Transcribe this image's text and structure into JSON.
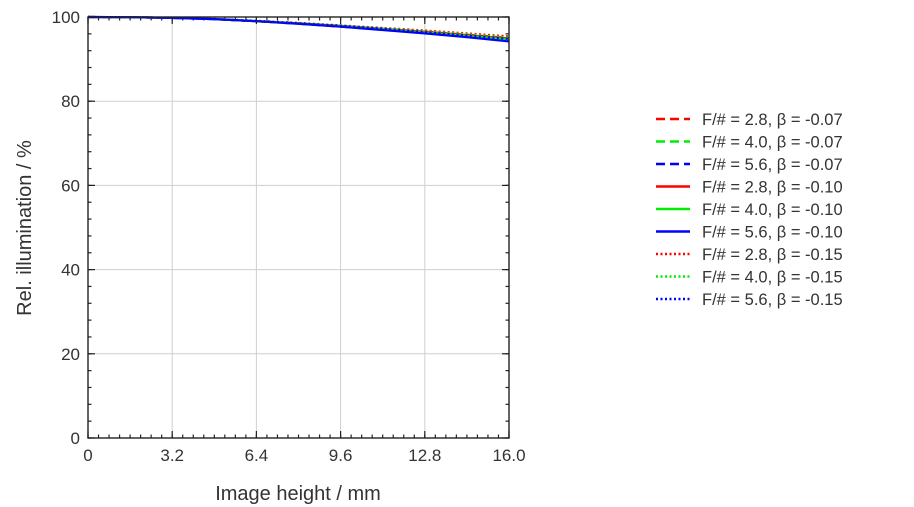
{
  "chart_data": {
    "type": "line",
    "title": "",
    "xlabel": "Image height / mm",
    "ylabel": "Rel. illumination / %",
    "xlim": [
      0,
      16.0
    ],
    "ylim": [
      0,
      100
    ],
    "xticks": [
      "0",
      "3.2",
      "6.4",
      "9.6",
      "12.8",
      "16.0"
    ],
    "yticks": [
      "0",
      "20",
      "40",
      "60",
      "80",
      "100"
    ],
    "grid": true,
    "legend_position": "right",
    "series": [
      {
        "name": "F/# = 2.8,  β = -0.07",
        "color": "#ff0000",
        "style": "dashed",
        "x": [
          0,
          1.6,
          3.2,
          4.8,
          6.4,
          8.0,
          9.6,
          11.2,
          12.8,
          14.4,
          16.0
        ],
        "y": [
          100,
          99.95,
          99.8,
          99.5,
          99.0,
          98.5,
          97.9,
          97.2,
          96.5,
          95.8,
          95.0
        ]
      },
      {
        "name": "F/# = 4.0,  β = -0.07",
        "color": "#00ee00",
        "style": "dashed",
        "x": [
          0,
          1.6,
          3.2,
          4.8,
          6.4,
          8.0,
          9.6,
          11.2,
          12.8,
          14.4,
          16.0
        ],
        "y": [
          100,
          99.95,
          99.8,
          99.5,
          99.0,
          98.4,
          97.8,
          97.1,
          96.4,
          95.6,
          94.8
        ]
      },
      {
        "name": "F/# = 5.6,  β = -0.07",
        "color": "#0000ff",
        "style": "dashed",
        "x": [
          0,
          1.6,
          3.2,
          4.8,
          6.4,
          8.0,
          9.6,
          11.2,
          12.8,
          14.4,
          16.0
        ],
        "y": [
          100,
          99.95,
          99.8,
          99.5,
          99.0,
          98.4,
          97.7,
          97.0,
          96.2,
          95.3,
          94.4
        ]
      },
      {
        "name": "F/# = 2.8,  β = -0.10",
        "color": "#ff0000",
        "style": "solid",
        "x": [
          0,
          1.6,
          3.2,
          4.8,
          6.4,
          8.0,
          9.6,
          11.2,
          12.8,
          14.4,
          16.0
        ],
        "y": [
          100,
          99.95,
          99.8,
          99.5,
          99.0,
          98.5,
          97.9,
          97.2,
          96.5,
          95.7,
          94.9
        ]
      },
      {
        "name": "F/# = 4.0,  β = -0.10",
        "color": "#00ee00",
        "style": "solid",
        "x": [
          0,
          1.6,
          3.2,
          4.8,
          6.4,
          8.0,
          9.6,
          11.2,
          12.8,
          14.4,
          16.0
        ],
        "y": [
          100,
          99.95,
          99.8,
          99.5,
          99.0,
          98.4,
          97.8,
          97.1,
          96.3,
          95.5,
          94.7
        ]
      },
      {
        "name": "F/# = 5.6,  β = -0.10",
        "color": "#0000ff",
        "style": "solid",
        "x": [
          0,
          1.6,
          3.2,
          4.8,
          6.4,
          8.0,
          9.6,
          11.2,
          12.8,
          14.4,
          16.0
        ],
        "y": [
          100,
          99.95,
          99.8,
          99.5,
          99.0,
          98.4,
          97.7,
          96.9,
          96.1,
          95.2,
          94.2
        ]
      },
      {
        "name": "F/# = 2.8,  β = -0.15",
        "color": "#ff0000",
        "style": "dotted",
        "x": [
          0,
          1.6,
          3.2,
          4.8,
          6.4,
          8.0,
          9.6,
          11.2,
          12.8,
          14.4,
          16.0
        ],
        "y": [
          100,
          99.95,
          99.8,
          99.55,
          99.1,
          98.6,
          98.0,
          97.4,
          96.8,
          96.1,
          95.4
        ]
      },
      {
        "name": "F/# = 4.0,  β = -0.15",
        "color": "#00ee00",
        "style": "dotted",
        "x": [
          0,
          1.6,
          3.2,
          4.8,
          6.4,
          8.0,
          9.6,
          11.2,
          12.8,
          14.4,
          16.0
        ],
        "y": [
          100,
          99.95,
          99.8,
          99.55,
          99.1,
          98.6,
          98.0,
          97.3,
          96.6,
          95.9,
          95.1
        ]
      },
      {
        "name": "F/# = 5.6,  β = -0.15",
        "color": "#0000ff",
        "style": "dotted",
        "x": [
          0,
          1.6,
          3.2,
          4.8,
          6.4,
          8.0,
          9.6,
          11.2,
          12.8,
          14.4,
          16.0
        ],
        "y": [
          100,
          99.95,
          99.8,
          99.5,
          99.05,
          98.5,
          97.9,
          97.2,
          96.4,
          95.6,
          94.8
        ]
      }
    ]
  }
}
